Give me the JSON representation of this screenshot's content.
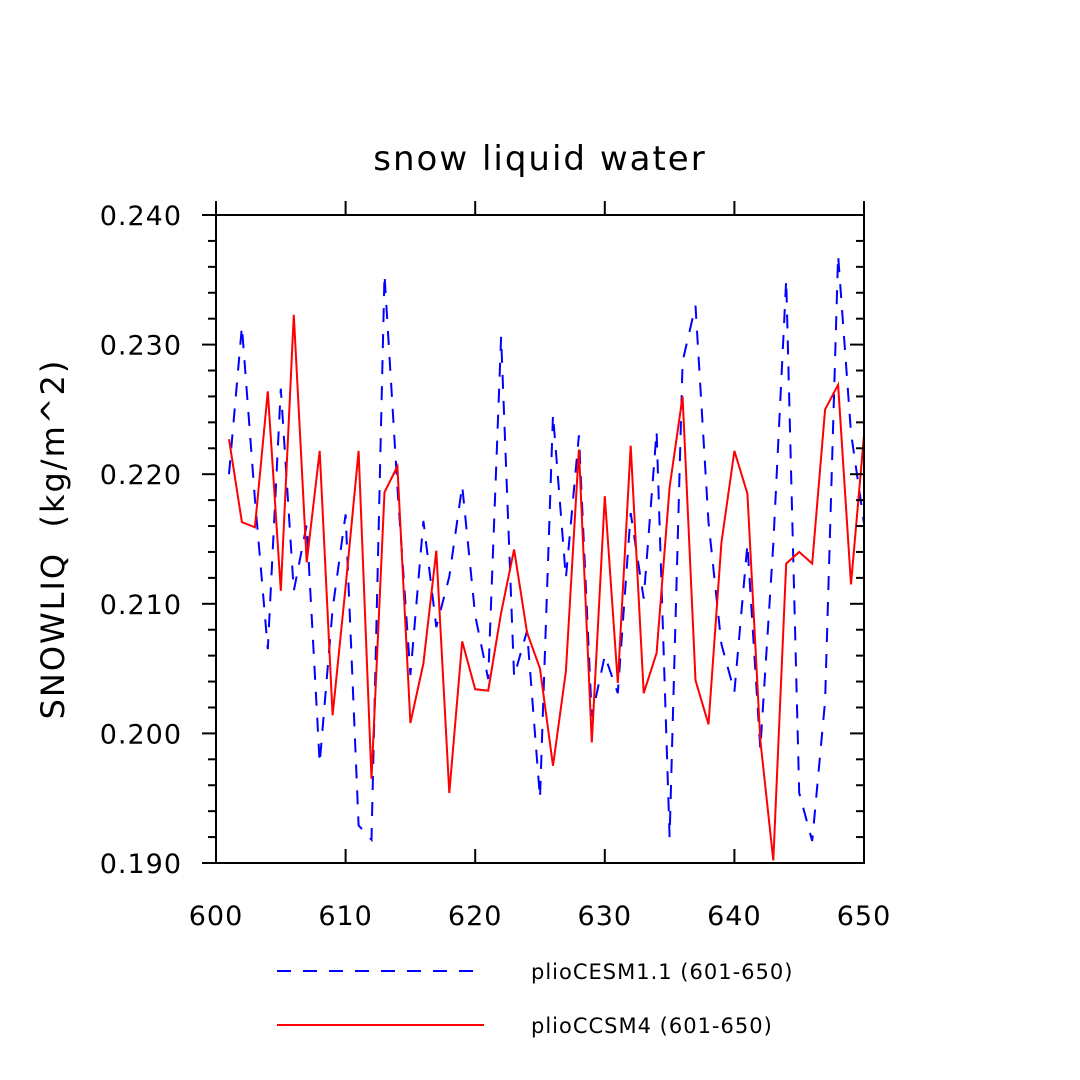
{
  "chart_data": {
    "type": "line",
    "title": "snow liquid water",
    "xlabel": "",
    "ylabel": "SNOWLIQ  (kg/m^2)",
    "xlim": [
      600,
      650
    ],
    "ylim": [
      0.19,
      0.24
    ],
    "x_ticks": [
      600,
      610,
      620,
      630,
      640,
      650
    ],
    "x_tick_labels": [
      "600",
      "610",
      "620",
      "630",
      "640",
      "650"
    ],
    "y_ticks": [
      0.19,
      0.2,
      0.21,
      0.22,
      0.23,
      0.24
    ],
    "y_tick_labels": [
      "0.190",
      "0.200",
      "0.210",
      "0.220",
      "0.230",
      "0.240"
    ],
    "grid": false,
    "legend_position": "bottom",
    "x": [
      601,
      602,
      603,
      604,
      605,
      606,
      607,
      608,
      609,
      610,
      611,
      612,
      613,
      614,
      615,
      616,
      617,
      618,
      619,
      620,
      621,
      622,
      623,
      624,
      625,
      626,
      627,
      628,
      629,
      630,
      631,
      632,
      633,
      634,
      635,
      636,
      637,
      638,
      639,
      640,
      641,
      642,
      643,
      644,
      645,
      646,
      647,
      648,
      649,
      650
    ],
    "series": [
      {
        "name": "plioCESM1.1 (601-650)",
        "color": "#0000ff",
        "dash": "dashed",
        "values": [
          0.22,
          0.2314,
          0.2181,
          0.2065,
          0.2266,
          0.211,
          0.2161,
          0.1977,
          0.2096,
          0.2169,
          0.1929,
          0.1918,
          0.2354,
          0.219,
          0.2045,
          0.2164,
          0.2082,
          0.2121,
          0.2191,
          0.2091,
          0.2042,
          0.2306,
          0.2044,
          0.2079,
          0.195,
          0.2246,
          0.212,
          0.223,
          0.2013,
          0.206,
          0.2031,
          0.217,
          0.2104,
          0.2233,
          0.192,
          0.2287,
          0.233,
          0.2163,
          0.2069,
          0.2032,
          0.2146,
          0.1988,
          0.2146,
          0.235,
          0.1954,
          0.1917,
          0.2025,
          0.2369,
          0.2232,
          0.2162
        ]
      },
      {
        "name": "plioCCSM4 (601-650)",
        "color": "#ff0000",
        "dash": "solid",
        "values": [
          0.2227,
          0.2163,
          0.2159,
          0.2264,
          0.211,
          0.2323,
          0.2132,
          0.2218,
          0.2014,
          0.2113,
          0.2218,
          0.1965,
          0.2186,
          0.2206,
          0.2008,
          0.2054,
          0.2141,
          0.1954,
          0.2071,
          0.2034,
          0.2033,
          0.2093,
          0.2142,
          0.2078,
          0.205,
          0.1975,
          0.2048,
          0.2219,
          0.1993,
          0.2183,
          0.2039,
          0.2222,
          0.2031,
          0.2062,
          0.219,
          0.226,
          0.2041,
          0.2007,
          0.2147,
          0.2218,
          0.2185,
          0.1995,
          0.1902,
          0.2131,
          0.214,
          0.2131,
          0.225,
          0.2269,
          0.2115,
          0.223
        ]
      }
    ]
  }
}
